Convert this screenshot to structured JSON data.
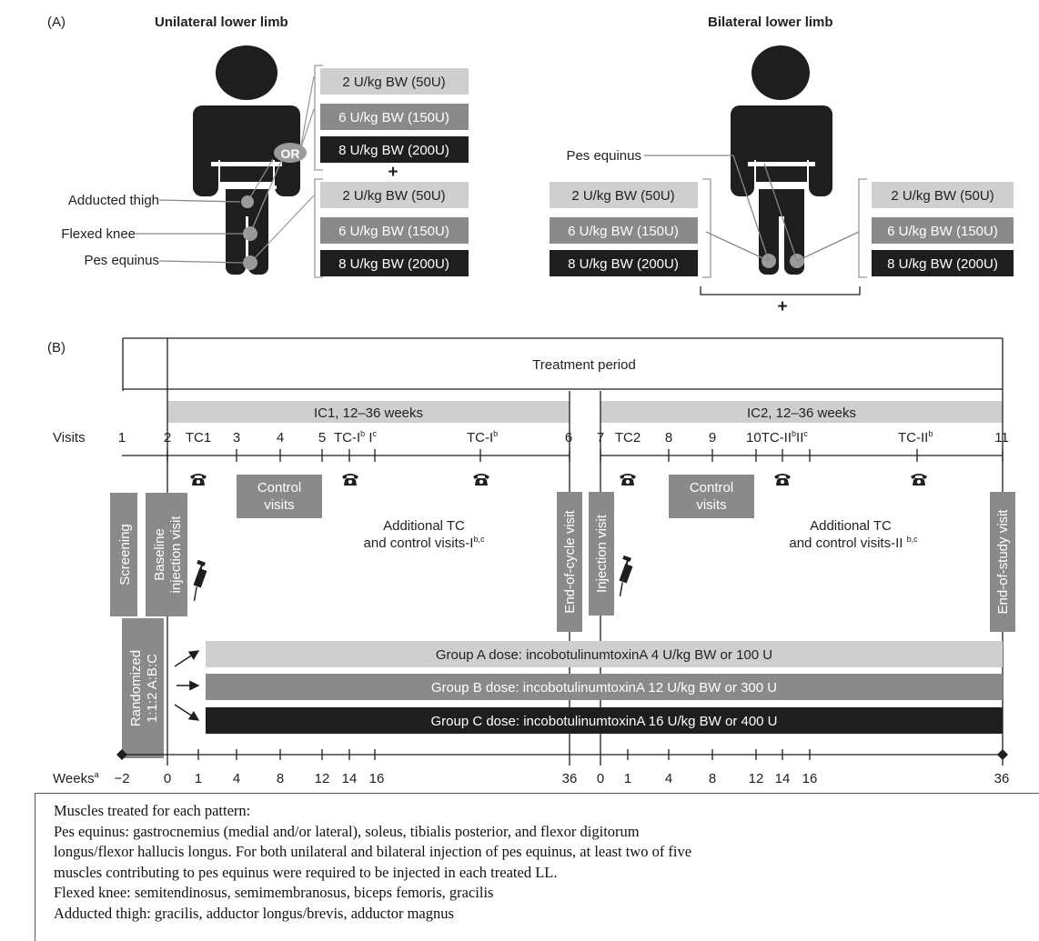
{
  "panel_a": {
    "label": "(A)",
    "unilateral_title": "Unilateral lower limb",
    "bilateral_title": "Bilateral lower limb",
    "or_label": "OR",
    "plus": "+",
    "doses": [
      "2 U/kg BW (50U)",
      "6 U/kg BW (150U)",
      "8 U/kg BW (200U)"
    ],
    "muscle_labels": {
      "adducted_thigh": "Adducted thigh",
      "flexed_knee": "Flexed knee",
      "pes_equinus": "Pes equinus"
    },
    "colors": {
      "light": "#cfcfcf",
      "mid": "#8a8a8a",
      "dark": "#1e1e1e"
    }
  },
  "panel_b": {
    "label": "(B)",
    "treatment_period": "Treatment period",
    "ic1": "IC1, 12–36 weeks",
    "ic2": "IC2, 12–36 weeks",
    "visits_label": "Visits",
    "visits": {
      "v1": "1",
      "v2": "2",
      "tc1": "TC1",
      "v3": "3",
      "v4": "4",
      "v5": "5",
      "tci_a": "TC-I",
      "tci_a_sup": "b",
      "tci_b": "I",
      "tci_b_sup": "c",
      "tci_c": "TC-I",
      "tci_c_sup": "b",
      "v6": "6",
      "v7": "7",
      "tc2": "TC2",
      "v8": "8",
      "v9": "9",
      "v10": "10",
      "tcii_a": "TC-II",
      "tcii_a_sup": "b",
      "tcii_b": "II",
      "tcii_b_sup": "c",
      "tcii_c": "TC-II",
      "tcii_c_sup": "b",
      "v11": "11"
    },
    "screening": "Screening",
    "baseline": [
      "Baseline",
      "injection visit"
    ],
    "end_of_cycle": "End-of-cycle visit",
    "injection_visit": "Injection visit",
    "end_of_study": "End-of-study visit",
    "control_visits": [
      "Control",
      "visits"
    ],
    "additional_1": [
      "Additional TC",
      "and control visits-I",
      "b,c"
    ],
    "additional_2": [
      "Additional TC",
      "and control visits-II ",
      "b,c"
    ],
    "randomized": [
      "Randomized",
      "1:1:2  A:B:C"
    ],
    "group_a": "Group A dose: incobotulinumtoxinA 4 U/kg BW or 100 U",
    "group_b": "Group B dose: incobotulinumtoxinA 12 U/kg BW or 300 U",
    "group_c": "Group C dose: incobotulinumtoxinA 16 U/kg BW or 400 U",
    "weeks_label": "Weeks",
    "weeks_sup": "a",
    "weeks_1": [
      "−2",
      "0",
      "1",
      "4",
      "8",
      "12",
      "14",
      "16",
      "36"
    ],
    "weeks_2": [
      "0",
      "1",
      "4",
      "8",
      "12",
      "14",
      "16",
      "36"
    ]
  },
  "notes": [
    "Muscles treated for each pattern:",
    "Pes equinus: gastrocnemius (medial and/or lateral), soleus, tibialis posterior, and flexor digitorum",
    "longus/flexor hallucis longus. For both unilateral and bilateral injection of pes equinus, at least two of five",
    "muscles contributing to pes equinus were required to be injected in each treated LL.",
    "Flexed knee: semitendinosus, semimembranosus, biceps femoris, gracilis",
    "Adducted thigh: gracilis, adductor longus/brevis, adductor magnus"
  ]
}
